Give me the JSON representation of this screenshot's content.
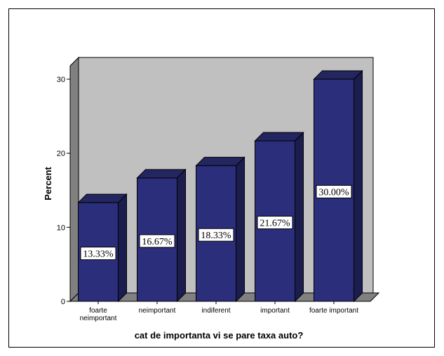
{
  "chart_data": {
    "type": "bar",
    "style": "3d",
    "categories": [
      "foarte neimportant",
      "neimportant",
      "indiferent",
      "important",
      "foarte important"
    ],
    "category_lines": [
      [
        "foarte",
        "neimportant"
      ],
      [
        "neimportant"
      ],
      [
        "indiferent"
      ],
      [
        "important"
      ],
      [
        "foarte important"
      ]
    ],
    "values": [
      13.33,
      16.67,
      18.33,
      21.67,
      30.0
    ],
    "data_labels": [
      "13.33%",
      "16.67%",
      "18.33%",
      "21.67%",
      "30.00%"
    ],
    "xlabel": "cat de importanta vi se pare taxa auto?",
    "ylabel": "Percent",
    "ylim": [
      0,
      30
    ],
    "yticks": [
      0,
      10,
      20,
      30
    ],
    "ytick_labels": [
      "0",
      "10",
      "20",
      "30"
    ],
    "grid": false,
    "legend": "none",
    "colors": {
      "bar_front": "#2b2e7a",
      "bar_side": "#1b1d4e",
      "bar_top": "#23265f",
      "wall": "#c0c0c0",
      "wall_left": "#808080",
      "floor": "#808080",
      "edge": "#000000"
    }
  }
}
